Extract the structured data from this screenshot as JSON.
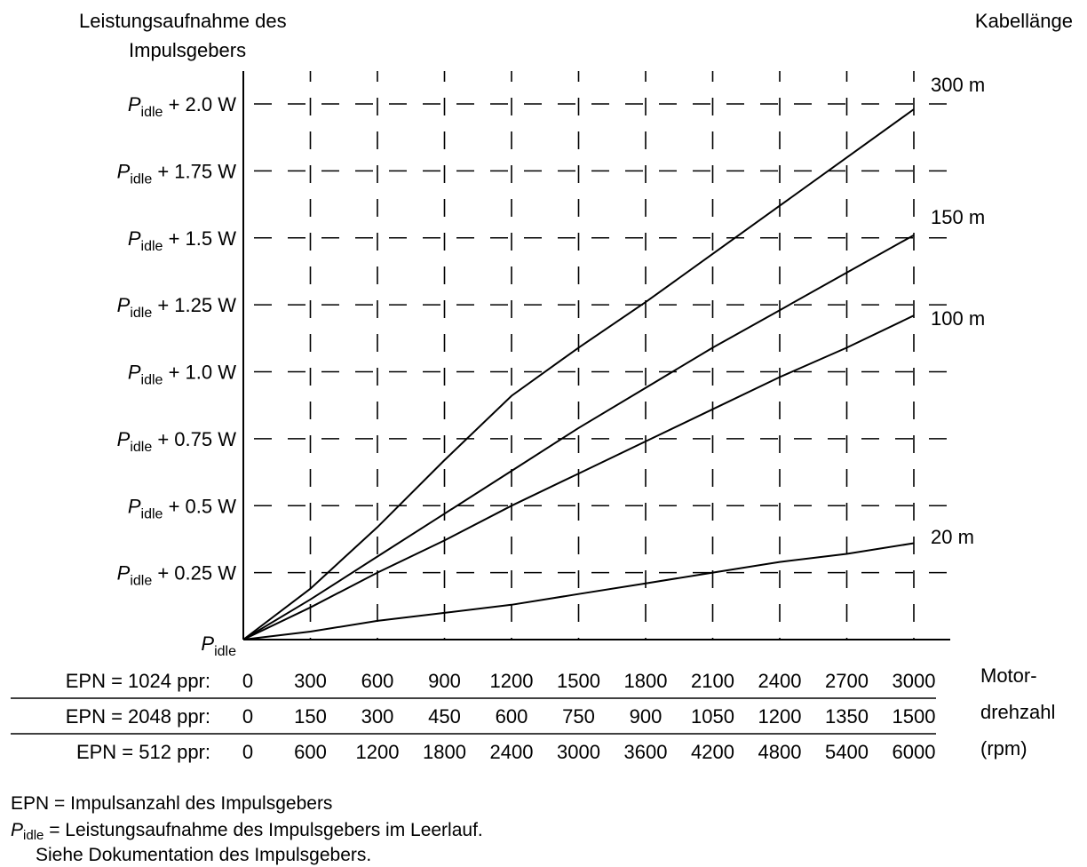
{
  "chart_data": {
    "type": "line",
    "y_axis_title_lines": [
      "Leistungsaufnahme des",
      "Impulsgebers"
    ],
    "series_header": "Kabellänge",
    "y_base_symbol": "P",
    "y_base_subscript": "idle",
    "y_ticks": [
      {
        "value": 0,
        "label": ""
      },
      {
        "value": 0.25,
        "label": " + 0.25 W"
      },
      {
        "value": 0.5,
        "label": " + 0.5 W"
      },
      {
        "value": 0.75,
        "label": " + 0.75 W"
      },
      {
        "value": 1.0,
        "label": " + 1.0 W"
      },
      {
        "value": 1.25,
        "label": " + 1.25 W"
      },
      {
        "value": 1.5,
        "label": " + 1.5 W"
      },
      {
        "value": 1.75,
        "label": " + 1.75 W"
      },
      {
        "value": 2.0,
        "label": " + 2.0 W"
      }
    ],
    "ylim": [
      0,
      2.0
    ],
    "x_rows": [
      {
        "label": "EPN = 1024 ppr:",
        "values": [
          "0",
          "300",
          "600",
          "900",
          "1200",
          "1500",
          "1800",
          "2100",
          "2400",
          "2700",
          "3000"
        ]
      },
      {
        "label": "EPN = 2048 ppr:",
        "values": [
          "0",
          "150",
          "300",
          "450",
          "600",
          "750",
          "900",
          "1050",
          "1200",
          "1350",
          "1500"
        ]
      },
      {
        "label": "EPN = 512 ppr:",
        "values": [
          "0",
          "600",
          "1200",
          "1800",
          "2400",
          "3000",
          "3600",
          "4200",
          "4800",
          "5400",
          "6000"
        ]
      }
    ],
    "x_axis_title_lines": [
      "Motor-",
      "drehzahl",
      "(rpm)"
    ],
    "x": [
      0,
      300,
      600,
      900,
      1200,
      1500,
      1800,
      2100,
      2400,
      2700,
      3000
    ],
    "xlim": [
      0,
      3000
    ],
    "grid": true,
    "series": [
      {
        "name": "300 m",
        "points": [
          [
            0,
            0
          ],
          [
            300,
            0.19
          ],
          [
            600,
            0.42
          ],
          [
            900,
            0.67
          ],
          [
            1200,
            0.91
          ],
          [
            1500,
            1.09
          ],
          [
            1800,
            1.26
          ],
          [
            2100,
            1.44
          ],
          [
            2400,
            1.62
          ],
          [
            2700,
            1.8
          ],
          [
            3000,
            1.98
          ]
        ]
      },
      {
        "name": "150 m",
        "points": [
          [
            0,
            0
          ],
          [
            300,
            0.15
          ],
          [
            600,
            0.31
          ],
          [
            900,
            0.47
          ],
          [
            1200,
            0.63
          ],
          [
            1500,
            0.79
          ],
          [
            1800,
            0.94
          ],
          [
            2100,
            1.09
          ],
          [
            2400,
            1.23
          ],
          [
            2700,
            1.37
          ],
          [
            3000,
            1.51
          ]
        ]
      },
      {
        "name": "100 m",
        "points": [
          [
            0,
            0
          ],
          [
            300,
            0.12
          ],
          [
            600,
            0.25
          ],
          [
            900,
            0.37
          ],
          [
            1200,
            0.5
          ],
          [
            1500,
            0.62
          ],
          [
            1800,
            0.74
          ],
          [
            2100,
            0.86
          ],
          [
            2400,
            0.98
          ],
          [
            2700,
            1.09
          ],
          [
            3000,
            1.21
          ]
        ]
      },
      {
        "name": "20 m",
        "points": [
          [
            0,
            0
          ],
          [
            300,
            0.03
          ],
          [
            600,
            0.07
          ],
          [
            900,
            0.1
          ],
          [
            1200,
            0.13
          ],
          [
            1500,
            0.17
          ],
          [
            1800,
            0.21
          ],
          [
            2100,
            0.25
          ],
          [
            2400,
            0.29
          ],
          [
            2700,
            0.32
          ],
          [
            3000,
            0.36
          ]
        ]
      }
    ]
  },
  "footnotes": {
    "epn_line": "EPN = Impulsanzahl des Impulsgebers",
    "pidle_symbol": "P",
    "pidle_subscript": "idle",
    "pidle_text": " = Leistungsaufnahme des Impulsgebers im Leerlauf.",
    "see_docs": "Siehe Dokumentation des Impulsgebers."
  }
}
